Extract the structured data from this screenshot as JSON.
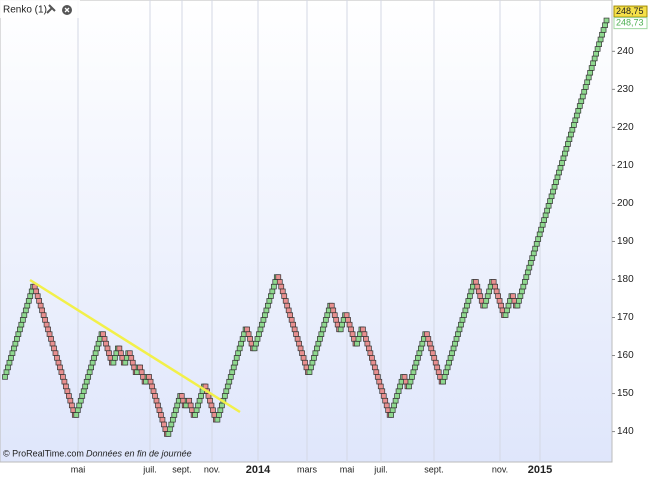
{
  "chart_data": {
    "type": "renko",
    "title": "Renko (1)",
    "footer": "© ProRealTime.com",
    "footer_note": "Données en fin de journée",
    "brick_size": 1.25,
    "up_color": "#8fd88f",
    "down_color": "#e89090",
    "series": [
      {
        "name": "Renko (1)",
        "values": [
          153.75,
          178.75,
          143.75,
          166.25,
          157.5,
          162.5,
          157.5,
          161.25,
          155,
          157.5,
          152.5,
          155,
          138.75,
          150,
          146.25,
          148.75,
          143.75,
          152.5,
          142.5,
          167.5,
          161.25,
          181.25,
          155,
          173.75,
          166.25,
          171.25,
          162.5,
          167.5,
          143.75,
          155,
          151.25,
          166.25,
          152.5,
          180,
          172.5,
          180,
          170,
          176.25,
          172.5,
          248.75
        ]
      }
    ],
    "x_labels": [
      "mai",
      "juil.",
      "sept.",
      "nov.",
      "2014",
      "mars",
      "mai",
      "juil.",
      "sept.",
      "nov.",
      "2015"
    ],
    "ylim": [
      132,
      253.5
    ],
    "yticks": [
      140,
      150,
      160,
      170,
      180,
      190,
      200,
      210,
      220,
      230,
      240
    ],
    "last_price": {
      "value": 248.75,
      "label": "248,75"
    },
    "close_price": {
      "value": 248.73,
      "label": "248,73"
    }
  }
}
